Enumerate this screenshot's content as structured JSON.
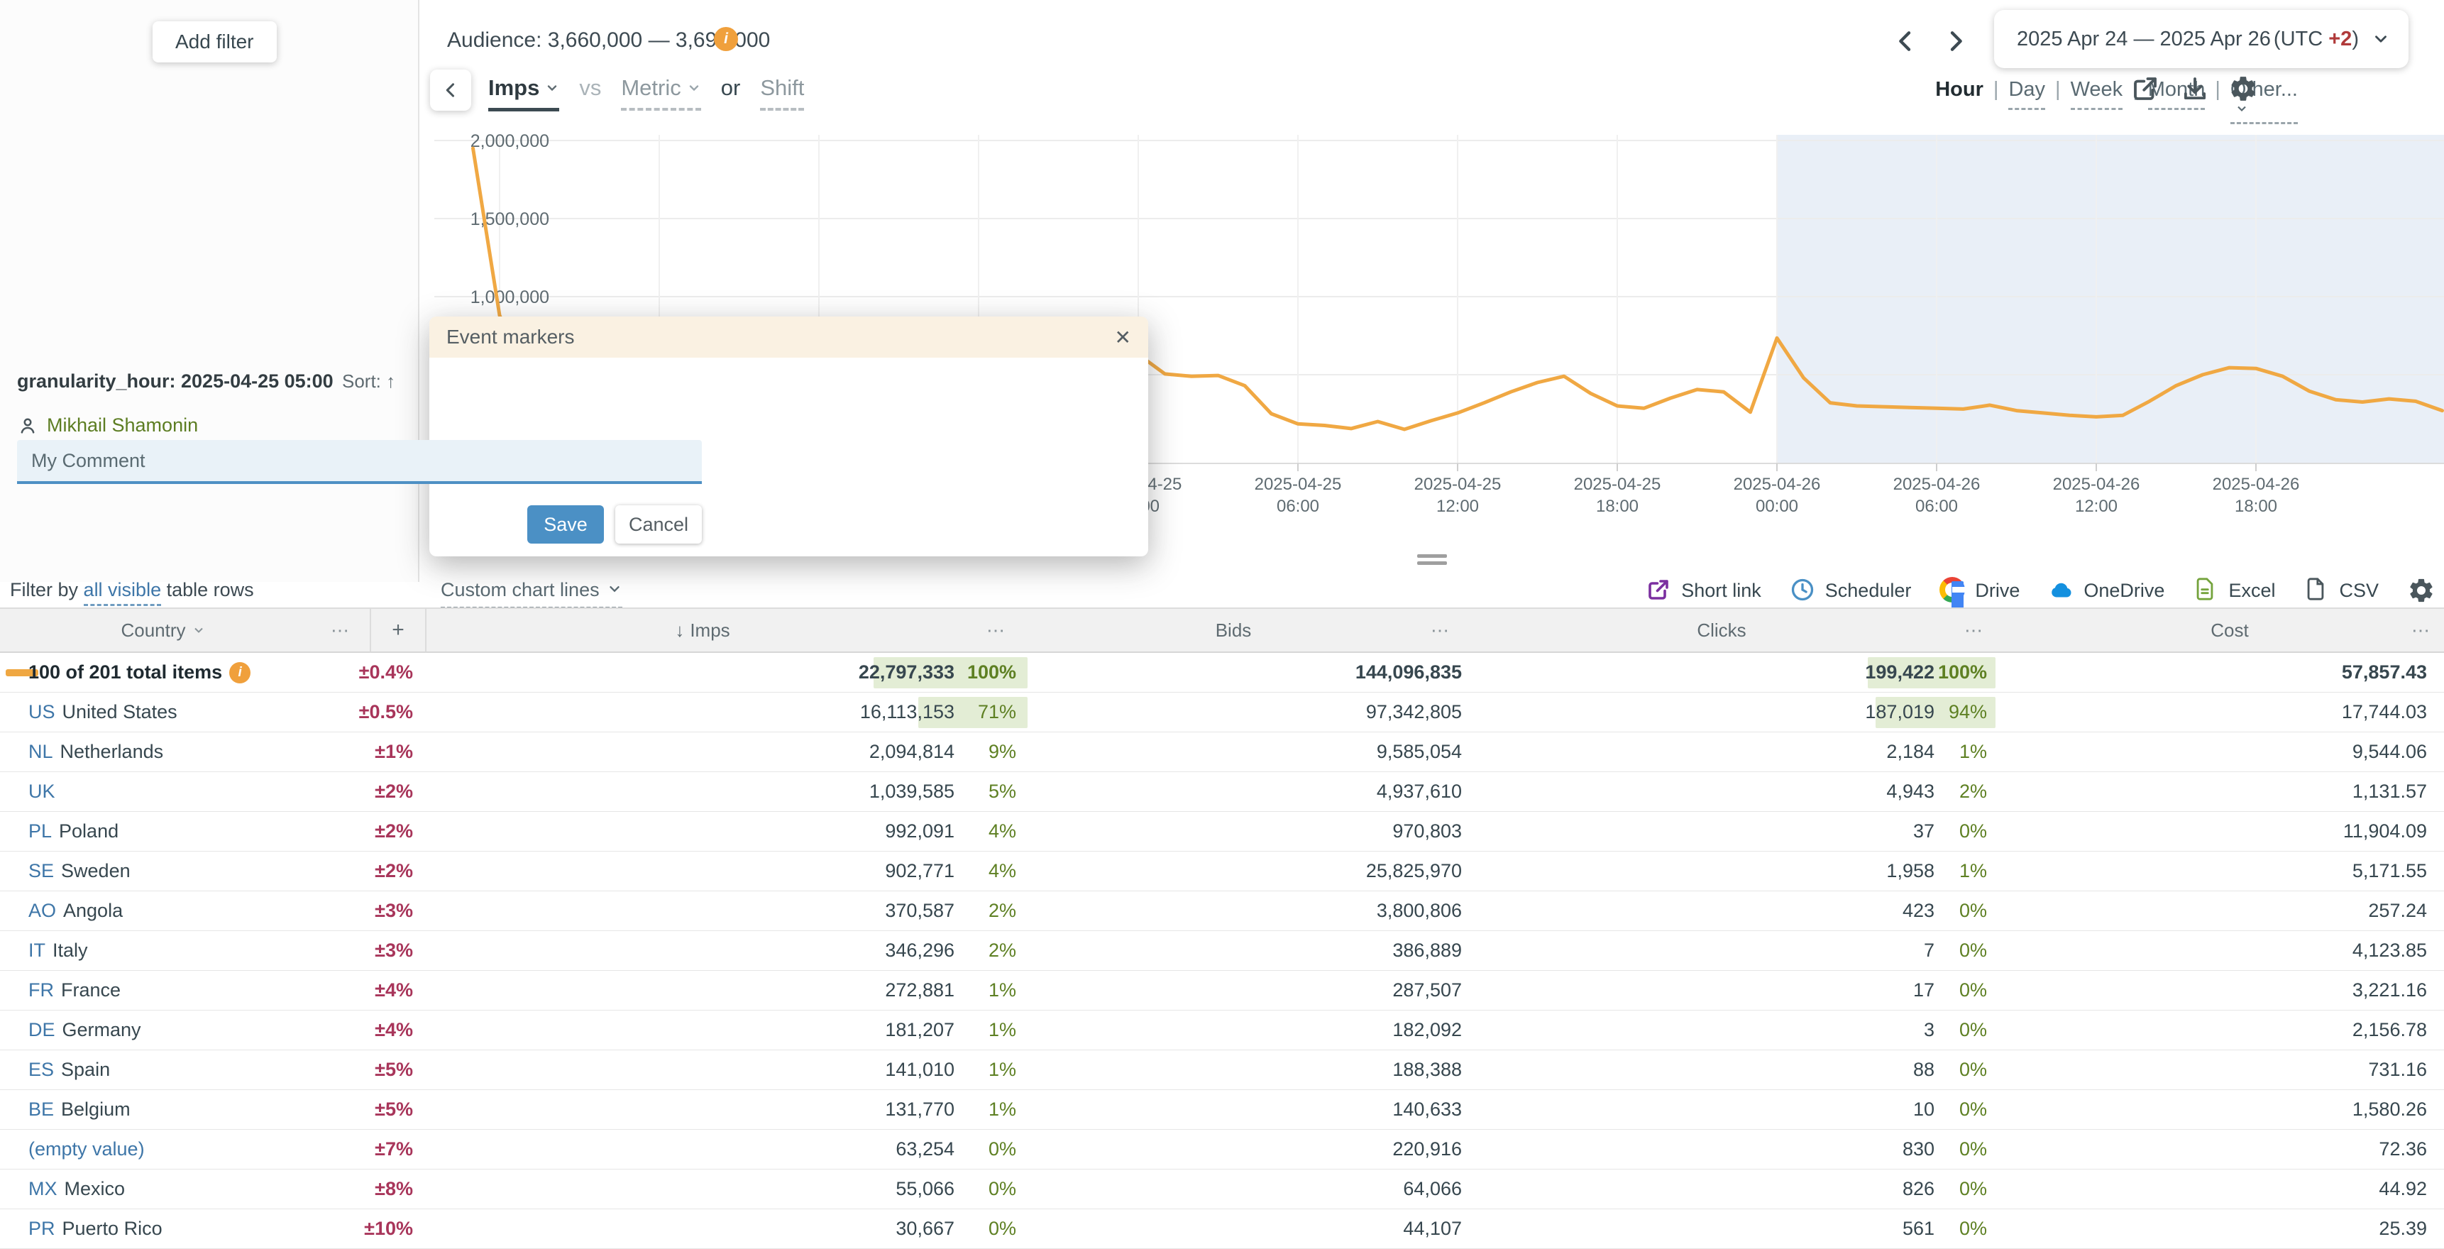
{
  "filters": {
    "add": "Add filter",
    "filter_by": "Filter by",
    "all_visible": "all visible",
    "suffix": "table rows"
  },
  "header": {
    "audience": "Audience: 3,660,000 — 3,690,000",
    "date_range": "2025 Apr 24 — 2025 Apr 26",
    "utc_label": "(UTC",
    "utc_value": "+2",
    "utc_close": ")"
  },
  "metric_bar": {
    "primary": "Imps",
    "vs": "vs",
    "metric": "Metric",
    "or": "or",
    "shift": "Shift"
  },
  "granularity": {
    "items": [
      "Hour",
      "Day",
      "Week",
      "Month",
      "Other..."
    ],
    "selected": "Hour",
    "separator": "|"
  },
  "chart_data": {
    "type": "line",
    "xlabel": "",
    "ylabel": "Imps",
    "ylim": [
      0,
      2100000
    ],
    "grid": true,
    "y_ticks": [
      {
        "v": 2000000,
        "label": "2,000,000"
      },
      {
        "v": 1500000,
        "label": "1,500,000"
      },
      {
        "v": 1000000,
        "label": "1,000,000"
      },
      {
        "v": 500000,
        "label": ""
      }
    ],
    "x_ticks": [
      {
        "date": "2025-04-25",
        "time": "00:00"
      },
      {
        "date": "2025-04-25",
        "time": "06:00"
      },
      {
        "date": "2025-04-25",
        "time": "12:00"
      },
      {
        "date": "2025-04-25",
        "time": "18:00"
      },
      {
        "date": "2025-04-26",
        "time": "00:00"
      },
      {
        "date": "2025-04-26",
        "time": "06:00"
      },
      {
        "date": "2025-04-26",
        "time": "12:00"
      },
      {
        "date": "2025-04-26",
        "time": "18:00"
      }
    ],
    "highlight_region": {
      "from": "2025-04-26 00:00",
      "to": "end",
      "color": "#e9eff7"
    },
    "series": [
      {
        "name": "Imps",
        "color": "#f0a843",
        "start": "2025-04-23 23:00",
        "step_hours": 1,
        "values": [
          1950000,
          880000,
          520000,
          480000,
          460000,
          470000,
          450000,
          430000,
          440000,
          460000,
          480000,
          500000,
          520000,
          540000,
          560000,
          580000,
          600000,
          620000,
          640000,
          650000,
          660000,
          655000,
          645000,
          640000,
          640000,
          630000,
          505000,
          490000,
          495000,
          430000,
          250000,
          185000,
          175000,
          155000,
          200000,
          150000,
          205000,
          255000,
          320000,
          390000,
          450000,
          490000,
          380000,
          300000,
          285000,
          350000,
          405000,
          390000,
          260000,
          735000,
          480000,
          320000,
          300000,
          295000,
          290000,
          285000,
          280000,
          305000,
          270000,
          255000,
          240000,
          230000,
          240000,
          330000,
          430000,
          500000,
          545000,
          540000,
          490000,
          395000,
          340000,
          325000,
          345000,
          330000,
          270000
        ]
      }
    ]
  },
  "dialog": {
    "title": "Event markers",
    "marker": "granularity_hour: 2025-04-25 05:00",
    "sort_label": "Sort:",
    "author": "Mikhail Shamonin",
    "comment_value": "My Comment",
    "save": "Save",
    "cancel": "Cancel"
  },
  "toolbar": {
    "custom_chart_lines": "Custom chart lines",
    "actions": [
      {
        "label": "Short link",
        "icon": "open-new",
        "color": "#7b2fa0"
      },
      {
        "label": "Scheduler",
        "icon": "clock",
        "color": "#4a90c5"
      },
      {
        "label": "Drive",
        "icon": "google",
        "color": ""
      },
      {
        "label": "OneDrive",
        "icon": "cloud",
        "color": "#1490df"
      },
      {
        "label": "Excel",
        "icon": "file-lines",
        "color": "#74a33c"
      },
      {
        "label": "CSV",
        "icon": "file",
        "color": "#4a565c"
      }
    ]
  },
  "table": {
    "columns": {
      "country": "Country",
      "imps": "Imps",
      "bids": "Bids",
      "clicks": "Clicks",
      "cost": "Cost"
    },
    "sorted_by": "Imps",
    "rows": [
      {
        "code": "",
        "name": "100 of 201 total items",
        "total": true,
        "pm": "±0.4%",
        "imps": "22,797,333",
        "imps_pct": 100,
        "bids": "144,096,835",
        "clicks": "199,422",
        "clicks_pct": 100,
        "cost": "57,857.43"
      },
      {
        "code": "US",
        "name": "United States",
        "pm": "±0.5%",
        "imps": "16,113,153",
        "imps_pct": 71,
        "bids": "97,342,805",
        "clicks": "187,019",
        "clicks_pct": 94,
        "cost": "17,744.03"
      },
      {
        "code": "NL",
        "name": "Netherlands",
        "pm": "±1%",
        "imps": "2,094,814",
        "imps_pct": 9,
        "bids": "9,585,054",
        "clicks": "2,184",
        "clicks_pct": 1,
        "cost": "9,544.06"
      },
      {
        "code": "UK",
        "name": "",
        "pm": "±2%",
        "imps": "1,039,585",
        "imps_pct": 5,
        "bids": "4,937,610",
        "clicks": "4,943",
        "clicks_pct": 2,
        "cost": "1,131.57"
      },
      {
        "code": "PL",
        "name": "Poland",
        "pm": "±2%",
        "imps": "992,091",
        "imps_pct": 4,
        "bids": "970,803",
        "clicks": "37",
        "clicks_pct": 0,
        "cost": "11,904.09"
      },
      {
        "code": "SE",
        "name": "Sweden",
        "pm": "±2%",
        "imps": "902,771",
        "imps_pct": 4,
        "bids": "25,825,970",
        "clicks": "1,958",
        "clicks_pct": 1,
        "cost": "5,171.55"
      },
      {
        "code": "AO",
        "name": "Angola",
        "pm": "±3%",
        "imps": "370,587",
        "imps_pct": 2,
        "bids": "3,800,806",
        "clicks": "423",
        "clicks_pct": 0,
        "cost": "257.24"
      },
      {
        "code": "IT",
        "name": "Italy",
        "pm": "±3%",
        "imps": "346,296",
        "imps_pct": 2,
        "bids": "386,889",
        "clicks": "7",
        "clicks_pct": 0,
        "cost": "4,123.85"
      },
      {
        "code": "FR",
        "name": "France",
        "pm": "±4%",
        "imps": "272,881",
        "imps_pct": 1,
        "bids": "287,507",
        "clicks": "17",
        "clicks_pct": 0,
        "cost": "3,221.16"
      },
      {
        "code": "DE",
        "name": "Germany",
        "pm": "±4%",
        "imps": "181,207",
        "imps_pct": 1,
        "bids": "182,092",
        "clicks": "3",
        "clicks_pct": 0,
        "cost": "2,156.78"
      },
      {
        "code": "ES",
        "name": "Spain",
        "pm": "±5%",
        "imps": "141,010",
        "imps_pct": 1,
        "bids": "188,388",
        "clicks": "88",
        "clicks_pct": 0,
        "cost": "731.16"
      },
      {
        "code": "BE",
        "name": "Belgium",
        "pm": "±5%",
        "imps": "131,770",
        "imps_pct": 1,
        "bids": "140,633",
        "clicks": "10",
        "clicks_pct": 0,
        "cost": "1,580.26"
      },
      {
        "code": "(empty value)",
        "name": "",
        "pm": "±7%",
        "imps": "63,254",
        "imps_pct": 0,
        "bids": "220,916",
        "clicks": "830",
        "clicks_pct": 0,
        "cost": "72.36"
      },
      {
        "code": "MX",
        "name": "Mexico",
        "pm": "±8%",
        "imps": "55,066",
        "imps_pct": 0,
        "bids": "64,066",
        "clicks": "826",
        "clicks_pct": 0,
        "cost": "44.92"
      },
      {
        "code": "PR",
        "name": "Puerto Rico",
        "pm": "±10%",
        "imps": "30,667",
        "imps_pct": 0,
        "bids": "44,107",
        "clicks": "561",
        "clicks_pct": 0,
        "cost": "25.39"
      }
    ]
  },
  "icons": {
    "ellipsis": "⋯",
    "plus": "+",
    "sort_down": "↓",
    "sort_up": "↑",
    "info": "i",
    "close": "✕"
  },
  "colors": {
    "accent_orange": "#efa742",
    "line": "#f0a843",
    "highlight": "#e9eff7",
    "link_blue": "#3e76a8",
    "red": "#a8355a",
    "green_text": "#5e8023",
    "green_bar": "#e3edd5",
    "save_blue": "#4b90c5"
  }
}
